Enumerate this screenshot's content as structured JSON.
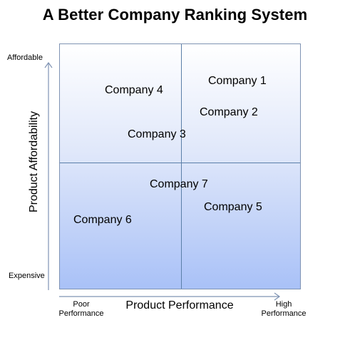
{
  "title": "A Better Company Ranking System",
  "axes": {
    "y_title": "Product Affordability",
    "y_top_label": "Affordable",
    "y_bottom_label": "Expensive",
    "x_title": "Product Performance",
    "x_left_label_1": "Poor",
    "x_left_label_2": "Performance",
    "x_right_label_1": "High",
    "x_right_label_2": "Performance"
  },
  "companies": [
    {
      "name": "Company 1"
    },
    {
      "name": "Company 2"
    },
    {
      "name": "Company 3"
    },
    {
      "name": "Company 4"
    },
    {
      "name": "Company 5"
    },
    {
      "name": "Company 6"
    },
    {
      "name": "Company 7"
    }
  ],
  "colors": {
    "gradient_top": "#ffffff",
    "gradient_bottom": "#a9c1f7",
    "divider": "#5b7fa8",
    "arrow": "#7f93b3"
  }
}
